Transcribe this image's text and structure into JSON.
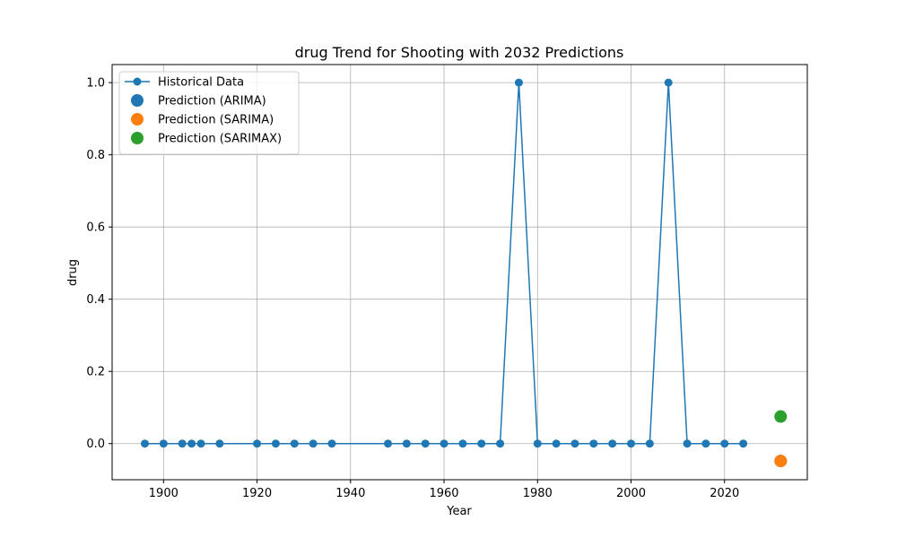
{
  "chart_data": {
    "type": "line",
    "title": "drug Trend for Shooting with 2032 Predictions",
    "xlabel": "Year",
    "ylabel": "drug",
    "xlim": [
      1889,
      2037.7
    ],
    "ylim": [
      -0.1,
      1.05
    ],
    "xticks": [
      1900,
      1920,
      1940,
      1960,
      1980,
      2000,
      2020
    ],
    "yticks": [
      0.0,
      0.2,
      0.4,
      0.6,
      0.8,
      1.0
    ],
    "xtick_labels": [
      "1900",
      "1920",
      "1940",
      "1960",
      "1980",
      "2000",
      "2020"
    ],
    "ytick_labels": [
      "0.0",
      "0.2",
      "0.4",
      "0.6",
      "0.8",
      "1.0"
    ],
    "grid": true,
    "legend_position": "top-left",
    "series": [
      {
        "name": "Historical Data",
        "kind": "line-marker",
        "color": "#1f77b4",
        "x": [
          1896,
          1900,
          1904,
          1906,
          1908,
          1912,
          1920,
          1924,
          1928,
          1932,
          1936,
          1948,
          1952,
          1956,
          1960,
          1964,
          1968,
          1972,
          1976,
          1980,
          1984,
          1988,
          1992,
          1996,
          2000,
          2004,
          2008,
          2012,
          2016,
          2020,
          2024
        ],
        "y": [
          0,
          0,
          0,
          0,
          0,
          0,
          0,
          0,
          0,
          0,
          0,
          0,
          0,
          0,
          0,
          0,
          0,
          0,
          1,
          0,
          0,
          0,
          0,
          0,
          0,
          0,
          1,
          0,
          0,
          0,
          0
        ]
      },
      {
        "name": "Prediction (ARIMA)",
        "kind": "scatter",
        "color": "#1f77b4",
        "x": [
          2032
        ],
        "y": [
          -0.048
        ]
      },
      {
        "name": "Prediction (SARIMA)",
        "kind": "scatter",
        "color": "#ff7f0e",
        "x": [
          2032
        ],
        "y": [
          -0.048
        ]
      },
      {
        "name": "Prediction (SARIMAX)",
        "kind": "scatter",
        "color": "#2ca02c",
        "x": [
          2032
        ],
        "y": [
          0.075
        ]
      }
    ]
  }
}
